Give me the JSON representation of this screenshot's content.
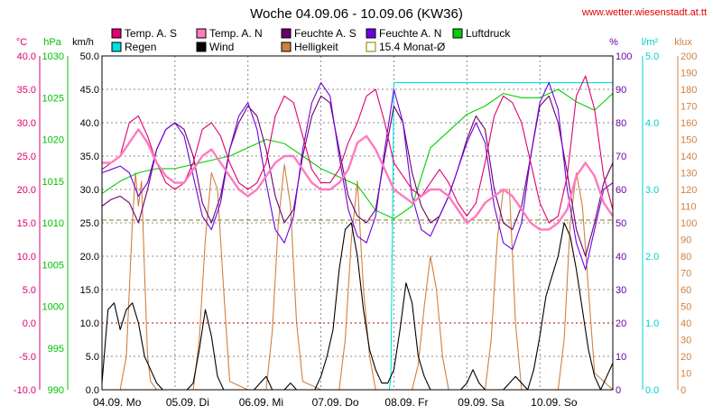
{
  "chart_data": {
    "type": "line",
    "title": "Woche 04.09.06 - 10.09.06 (KW36)",
    "source": "www.wetter.wiesenstadt.at.tt",
    "x_labels": [
      "04.09.  Mo",
      "05.09.  Di",
      "06.09.  Mi",
      "07.09.  Do",
      "08.09.  Fr",
      "09.09.  Sa",
      "10.09.  So"
    ],
    "x_hours": [
      0,
      24,
      48,
      72,
      96,
      120,
      144
    ],
    "xlim": [
      0,
      168
    ],
    "axes": {
      "temp": {
        "unit": "°C",
        "ylim": [
          -10,
          40
        ],
        "ticks": [
          "40.0",
          "35.0",
          "30.0",
          "25.0",
          "20.0",
          "15.0",
          "10.0",
          "5.0",
          "0.0",
          "-5.0",
          "-10.0"
        ],
        "color": "#e0006e"
      },
      "pressure": {
        "unit": "hPa",
        "ylim": [
          990,
          1030
        ],
        "ticks": [
          "1030",
          "1025",
          "1020",
          "1015",
          "1010",
          "1005",
          "1000",
          "995",
          "990"
        ],
        "color": "#00c000"
      },
      "wind": {
        "unit": "km/h",
        "ylim": [
          0,
          50
        ],
        "ticks": [
          "50.0",
          "45.0",
          "40.0",
          "35.0",
          "30.0",
          "25.0",
          "20.0",
          "15.0",
          "10.0",
          "5.0",
          "0.0"
        ],
        "color": "#000000"
      },
      "humidity": {
        "unit": "%",
        "ylim": [
          0,
          100
        ],
        "ticks": [
          "100",
          "90",
          "80",
          "70",
          "60",
          "50",
          "40",
          "30",
          "20",
          "10",
          "0"
        ],
        "color": "#6a00a8"
      },
      "rain": {
        "unit": "l/m²",
        "ylim": [
          0,
          5
        ],
        "ticks": [
          "5.0",
          "4.0",
          "3.0",
          "2.0",
          "1.0",
          "0.0"
        ],
        "color": "#00d0d0"
      },
      "lux": {
        "unit": "klux",
        "ylim": [
          0,
          200
        ],
        "ticks": [
          "200",
          "190",
          "180",
          "170",
          "160",
          "150",
          "140",
          "130",
          "120",
          "110",
          "100",
          "90",
          "80",
          "70",
          "60",
          "50",
          "40",
          "30",
          "20",
          "10",
          "0"
        ],
        "color": "#d08040"
      }
    },
    "legend": [
      {
        "label": "Temp. A. S",
        "color": "#e0006e"
      },
      {
        "label": "Temp. A. N",
        "color": "#ff7ac0"
      },
      {
        "label": "Feuchte A. S",
        "color": "#6a006a"
      },
      {
        "label": "Feuchte A. N",
        "color": "#7000e0"
      },
      {
        "label": "Luftdruck",
        "color": "#00d000"
      },
      {
        "label": "Regen",
        "color": "#00e0e0"
      },
      {
        "label": "Wind",
        "color": "#000000"
      },
      {
        "label": "Helligkeit",
        "color": "#d08040"
      },
      {
        "label": "15.4 Monat-Ø",
        "color": "#8a7a00"
      }
    ],
    "monthly_avg_temp": 15.4,
    "series": [
      {
        "name": "Temp. A. S",
        "axis": "temp",
        "color": "#e0006e",
        "x": [
          0,
          3,
          6,
          9,
          12,
          15,
          18,
          21,
          24,
          27,
          30,
          33,
          36,
          39,
          42,
          45,
          48,
          51,
          54,
          57,
          60,
          63,
          66,
          69,
          72,
          75,
          78,
          81,
          84,
          87,
          90,
          93,
          96,
          99,
          102,
          105,
          108,
          111,
          114,
          117,
          120,
          123,
          126,
          129,
          132,
          135,
          138,
          141,
          144,
          147,
          150,
          153,
          156,
          159,
          162,
          165,
          168
        ],
        "values": [
          23,
          24,
          25,
          30,
          31,
          28,
          24,
          21,
          20,
          21,
          24,
          29,
          30,
          28,
          24,
          21,
          20,
          21,
          24,
          31,
          34,
          33,
          28,
          23,
          21,
          21,
          23,
          27,
          30,
          34,
          35,
          30,
          24,
          22,
          20,
          19,
          21,
          23,
          21,
          18,
          16,
          18,
          24,
          31,
          34,
          33,
          30,
          24,
          18,
          15,
          16,
          22,
          34,
          37,
          32,
          22,
          17
        ]
      },
      {
        "name": "Temp. A. N",
        "axis": "temp",
        "color": "#ff7ac0",
        "x": [
          0,
          3,
          6,
          9,
          12,
          15,
          18,
          21,
          24,
          27,
          30,
          33,
          36,
          39,
          42,
          45,
          48,
          51,
          54,
          57,
          60,
          63,
          66,
          69,
          72,
          75,
          78,
          81,
          84,
          87,
          90,
          93,
          96,
          99,
          102,
          105,
          108,
          111,
          114,
          117,
          120,
          123,
          126,
          129,
          132,
          135,
          138,
          141,
          144,
          147,
          150,
          153,
          156,
          159,
          162,
          165,
          168
        ],
        "values": [
          24,
          24,
          25,
          27,
          29,
          27,
          24,
          22,
          21,
          21,
          23,
          25,
          26,
          24,
          22,
          20,
          19,
          20,
          22,
          24,
          25,
          25,
          23,
          21,
          20,
          20,
          21,
          23,
          27,
          28,
          26,
          23,
          20,
          19,
          18,
          19,
          20,
          20,
          19,
          17,
          15,
          16,
          18,
          19,
          20,
          19,
          17,
          15,
          14,
          14,
          15,
          17,
          22,
          24,
          22,
          18,
          16
        ]
      },
      {
        "name": "Feuchte A. S",
        "axis": "humidity",
        "color": "#6a006a",
        "x": [
          0,
          3,
          6,
          9,
          12,
          15,
          18,
          21,
          24,
          27,
          30,
          33,
          36,
          39,
          42,
          45,
          48,
          51,
          54,
          57,
          60,
          63,
          66,
          69,
          72,
          75,
          78,
          81,
          84,
          87,
          90,
          93,
          96,
          99,
          102,
          105,
          108,
          111,
          114,
          117,
          120,
          123,
          126,
          129,
          132,
          135,
          138,
          141,
          144,
          147,
          150,
          153,
          156,
          159,
          162,
          165,
          168
        ],
        "values": [
          55,
          57,
          58,
          56,
          50,
          60,
          72,
          78,
          80,
          78,
          70,
          56,
          50,
          58,
          72,
          80,
          85,
          82,
          72,
          58,
          50,
          54,
          70,
          82,
          88,
          86,
          72,
          58,
          52,
          50,
          54,
          70,
          85,
          80,
          65,
          55,
          50,
          52,
          58,
          66,
          75,
          82,
          78,
          60,
          50,
          48,
          55,
          70,
          85,
          88,
          80,
          65,
          48,
          40,
          50,
          62,
          68
        ]
      },
      {
        "name": "Feuchte A. N",
        "axis": "humidity",
        "color": "#7000e0",
        "x": [
          0,
          3,
          6,
          9,
          12,
          15,
          18,
          21,
          24,
          27,
          30,
          33,
          36,
          39,
          42,
          45,
          48,
          51,
          54,
          57,
          60,
          63,
          66,
          69,
          72,
          75,
          78,
          81,
          84,
          87,
          90,
          93,
          96,
          99,
          102,
          105,
          108,
          111,
          114,
          117,
          120,
          123,
          126,
          129,
          132,
          135,
          138,
          141,
          144,
          147,
          150,
          153,
          156,
          159,
          162,
          165,
          168
        ],
        "values": [
          65,
          66,
          67,
          65,
          58,
          62,
          72,
          78,
          80,
          76,
          64,
          52,
          48,
          56,
          72,
          82,
          86,
          78,
          62,
          48,
          44,
          52,
          72,
          86,
          92,
          88,
          70,
          54,
          46,
          44,
          52,
          72,
          90,
          80,
          58,
          48,
          46,
          52,
          58,
          66,
          74,
          80,
          74,
          55,
          44,
          42,
          50,
          70,
          86,
          92,
          84,
          60,
          44,
          36,
          48,
          60,
          62
        ]
      },
      {
        "name": "Luftdruck",
        "axis": "pressure",
        "color": "#00d000",
        "x": [
          0,
          6,
          12,
          18,
          24,
          30,
          36,
          42,
          48,
          54,
          60,
          66,
          72,
          78,
          84,
          90,
          96,
          102,
          108,
          114,
          120,
          126,
          132,
          138,
          144,
          150,
          156,
          162,
          168
        ],
        "values": [
          1013.5,
          1015,
          1016,
          1016.5,
          1016.5,
          1017,
          1017.5,
          1018,
          1019,
          1020,
          1019.5,
          1018,
          1016.5,
          1015.5,
          1014.5,
          1011.5,
          1010.5,
          1012,
          1019,
          1021,
          1023,
          1024,
          1025.5,
          1025,
          1025,
          1026,
          1024.5,
          1023.5,
          1025.5
        ]
      },
      {
        "name": "Regen",
        "axis": "rain",
        "color": "#00e0e0",
        "x": [
          0,
          94.5,
          95,
          96,
          168
        ],
        "values": [
          0,
          0,
          0.2,
          4.6,
          4.6
        ]
      },
      {
        "name": "Wind",
        "axis": "wind",
        "color": "#000000",
        "x": [
          0,
          2,
          4,
          6,
          8,
          10,
          12,
          14,
          16,
          18,
          20,
          22,
          24,
          26,
          28,
          30,
          32,
          34,
          36,
          38,
          40,
          42,
          44,
          46,
          48,
          50,
          52,
          54,
          56,
          58,
          60,
          62,
          64,
          66,
          68,
          70,
          72,
          74,
          76,
          78,
          80,
          82,
          84,
          86,
          88,
          90,
          92,
          94,
          96,
          98,
          100,
          102,
          104,
          106,
          108,
          110,
          112,
          114,
          116,
          118,
          120,
          122,
          124,
          126,
          128,
          130,
          132,
          134,
          136,
          138,
          140,
          142,
          144,
          146,
          148,
          150,
          152,
          154,
          156,
          158,
          160,
          162,
          164,
          166,
          168
        ],
        "values": [
          1,
          12,
          13,
          9,
          12,
          13,
          10,
          5,
          3,
          1,
          0,
          0,
          0,
          0,
          0,
          1,
          6,
          12,
          8,
          2,
          0,
          0,
          0,
          0,
          0,
          0,
          1,
          2,
          0,
          0,
          0,
          1,
          0,
          0,
          0,
          0,
          2,
          5,
          9,
          18,
          24,
          25,
          20,
          12,
          6,
          3,
          1,
          1,
          3,
          9,
          16,
          13,
          5,
          2,
          0,
          0,
          0,
          0,
          0,
          0,
          1,
          3,
          1,
          0,
          0,
          0,
          0,
          1,
          2,
          1,
          0,
          3,
          8,
          14,
          17,
          20,
          25,
          23,
          18,
          12,
          6,
          2,
          0,
          2,
          4
        ]
      },
      {
        "name": "Helligkeit",
        "axis": "lux",
        "color": "#d08040",
        "x": [
          0,
          6,
          8,
          9,
          10,
          11,
          12,
          13,
          14,
          15,
          16,
          18,
          24,
          30,
          32,
          34,
          36,
          38,
          40,
          42,
          48,
          54,
          56,
          58,
          60,
          62,
          64,
          66,
          72,
          78,
          80,
          82,
          84,
          86,
          88,
          90,
          96,
          102,
          104,
          106,
          108,
          110,
          112,
          114,
          120,
          126,
          128,
          130,
          132,
          134,
          136,
          138,
          144,
          150,
          152,
          154,
          156,
          158,
          160,
          162,
          168
        ],
        "values": [
          0,
          0,
          20,
          60,
          100,
          130,
          110,
          125,
          70,
          20,
          5,
          0,
          0,
          0,
          30,
          90,
          130,
          120,
          60,
          5,
          0,
          0,
          35,
          100,
          135,
          110,
          40,
          5,
          0,
          0,
          30,
          90,
          125,
          60,
          20,
          0,
          0,
          0,
          15,
          50,
          80,
          60,
          20,
          0,
          0,
          0,
          30,
          90,
          120,
          120,
          40,
          0,
          0,
          0,
          30,
          100,
          130,
          110,
          60,
          10,
          0
        ]
      }
    ]
  }
}
